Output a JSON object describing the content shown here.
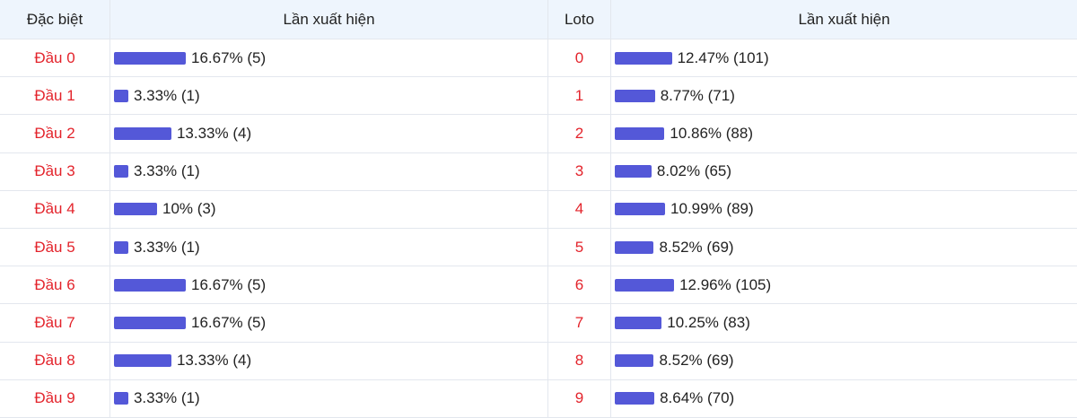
{
  "table": {
    "headers": [
      "Đặc biệt",
      "Lần xuất hiện",
      "Loto",
      "Lần xuất hiện"
    ],
    "left_rows": [
      {
        "label": "Đầu 0",
        "value": 16.67,
        "value_label": "16.67% (5)"
      },
      {
        "label": "Đầu 1",
        "value": 3.33,
        "value_label": "3.33% (1)"
      },
      {
        "label": "Đầu 2",
        "value": 13.33,
        "value_label": "13.33% (4)"
      },
      {
        "label": "Đầu 3",
        "value": 3.33,
        "value_label": "3.33% (1)"
      },
      {
        "label": "Đầu 4",
        "value": 10,
        "value_label": "10% (3)"
      },
      {
        "label": "Đầu 5",
        "value": 3.33,
        "value_label": "3.33% (1)"
      },
      {
        "label": "Đầu 6",
        "value": 16.67,
        "value_label": "16.67% (5)"
      },
      {
        "label": "Đầu 7",
        "value": 16.67,
        "value_label": "16.67% (5)"
      },
      {
        "label": "Đầu 8",
        "value": 13.33,
        "value_label": "13.33% (4)"
      },
      {
        "label": "Đầu 9",
        "value": 3.33,
        "value_label": "3.33% (1)"
      }
    ],
    "right_rows": [
      {
        "label": "0",
        "value": 12.47,
        "value_label": "12.47% (101)"
      },
      {
        "label": "1",
        "value": 8.77,
        "value_label": "8.77% (71)"
      },
      {
        "label": "2",
        "value": 10.86,
        "value_label": "10.86% (88)"
      },
      {
        "label": "3",
        "value": 8.02,
        "value_label": "8.02% (65)"
      },
      {
        "label": "4",
        "value": 10.99,
        "value_label": "10.99% (89)"
      },
      {
        "label": "5",
        "value": 8.52,
        "value_label": "8.52% (69)"
      },
      {
        "label": "6",
        "value": 12.96,
        "value_label": "12.96% (105)"
      },
      {
        "label": "7",
        "value": 10.25,
        "value_label": "10.25% (83)"
      },
      {
        "label": "8",
        "value": 8.52,
        "value_label": "8.52% (69)"
      },
      {
        "label": "9",
        "value": 8.64,
        "value_label": "8.64% (70)"
      }
    ]
  }
}
